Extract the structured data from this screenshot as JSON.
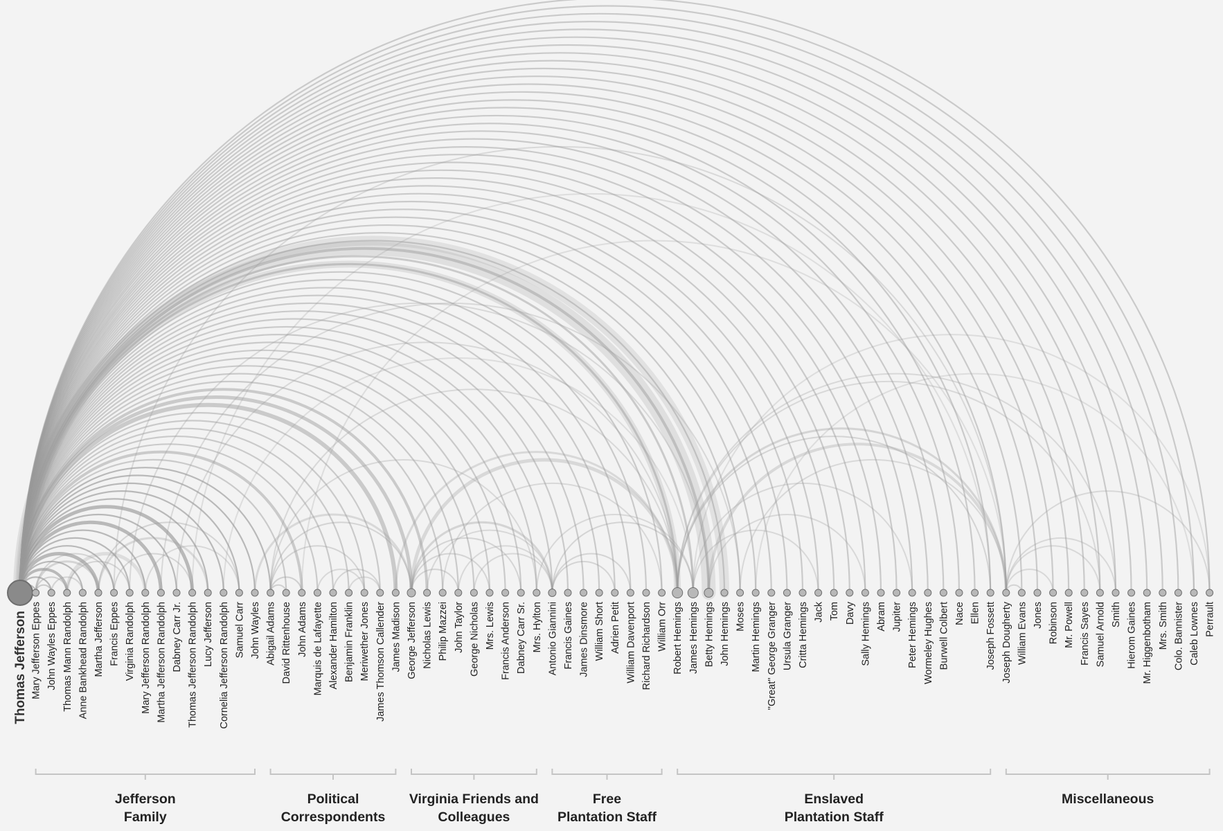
{
  "diagram": {
    "root": "Thomas Jefferson",
    "groups": [
      {
        "label_lines": [
          "Jefferson",
          "Family"
        ],
        "nodes": [
          "Mary Jefferson Eppes",
          "John Wayles Eppes",
          "Thomas Mann Randolph",
          "Anne Bankhead Randolph",
          "Martha Jefferson",
          "Francis Eppes",
          "Virginia Randolph",
          "Mary Jefferson Randolph",
          "Martha Jefferson Randolph",
          "Dabney Carr Jr.",
          "Thomas Jefferson Randolph",
          "Lucy Jefferson",
          "Cornelia Jefferson Randolph",
          "Samuel Carr",
          "John Wayles"
        ]
      },
      {
        "label_lines": [
          "Political",
          "Correspondents"
        ],
        "nodes": [
          "Abigail Adams",
          "David Rittenhouse",
          "John Adams",
          "Marquis de Lafayette",
          "Alexander Hamilton",
          "Benjamin Franklin",
          "Meriwether Jones",
          "James Thomson Callender",
          "James Madison"
        ]
      },
      {
        "label_lines": [
          "Virginia Friends and",
          "Colleagues"
        ],
        "nodes": [
          "George Jefferson",
          "Nicholas Lewis",
          "Philip Mazzei",
          "John Taylor",
          "George Nicholas",
          "Mrs. Lewis",
          "Francis Anderson",
          "Dabney Carr Sr.",
          "Mrs. Hylton"
        ]
      },
      {
        "label_lines": [
          "Free",
          "Plantation Staff"
        ],
        "nodes": [
          "Antonio Giannini",
          "Francis Gaines",
          "James Dinsmore",
          "William Short",
          "Adrien Petit",
          "William Davenport",
          "Richard Richardson",
          "William Orr"
        ]
      },
      {
        "label_lines": [
          "Enslaved",
          "Plantation Staff"
        ],
        "nodes": [
          "Robert Hemings",
          "James Hemings",
          "Betty Hemings",
          "John Hemings",
          "Moses",
          "Martin Hemings",
          "\"Great\" George Granger",
          "Ursula Granger",
          "Critta Hemings",
          "Jack",
          "Tom",
          "Davy",
          "Sally Hemings",
          "Abram",
          "Jupiter",
          "Peter Hemings",
          "Wormeley Hughes",
          "Burwell Colbert",
          "Nace",
          "Ellen",
          "Joseph Fossett"
        ]
      },
      {
        "label_lines": [
          "Miscellaneous",
          ""
        ],
        "nodes": [
          "Joseph Dougherty",
          "William Evans",
          "Jones",
          "Robinson",
          "Mr. Powell",
          "Francis Sayes",
          "Samuel Arnold",
          "Smith",
          "Hierom Gaines",
          "Mr. Higgenbotham",
          "Mrs. Smith",
          "Colo. Bannister",
          "Caleb Lownes",
          "Perrault"
        ]
      }
    ],
    "colors": {
      "background": "#f3f3f3",
      "arc": "#9a9a9a",
      "node_fill": "#b8b8b8",
      "root_fill": "#8a8a8a",
      "bracket": "#c4c4c4",
      "text": "#222222"
    }
  }
}
